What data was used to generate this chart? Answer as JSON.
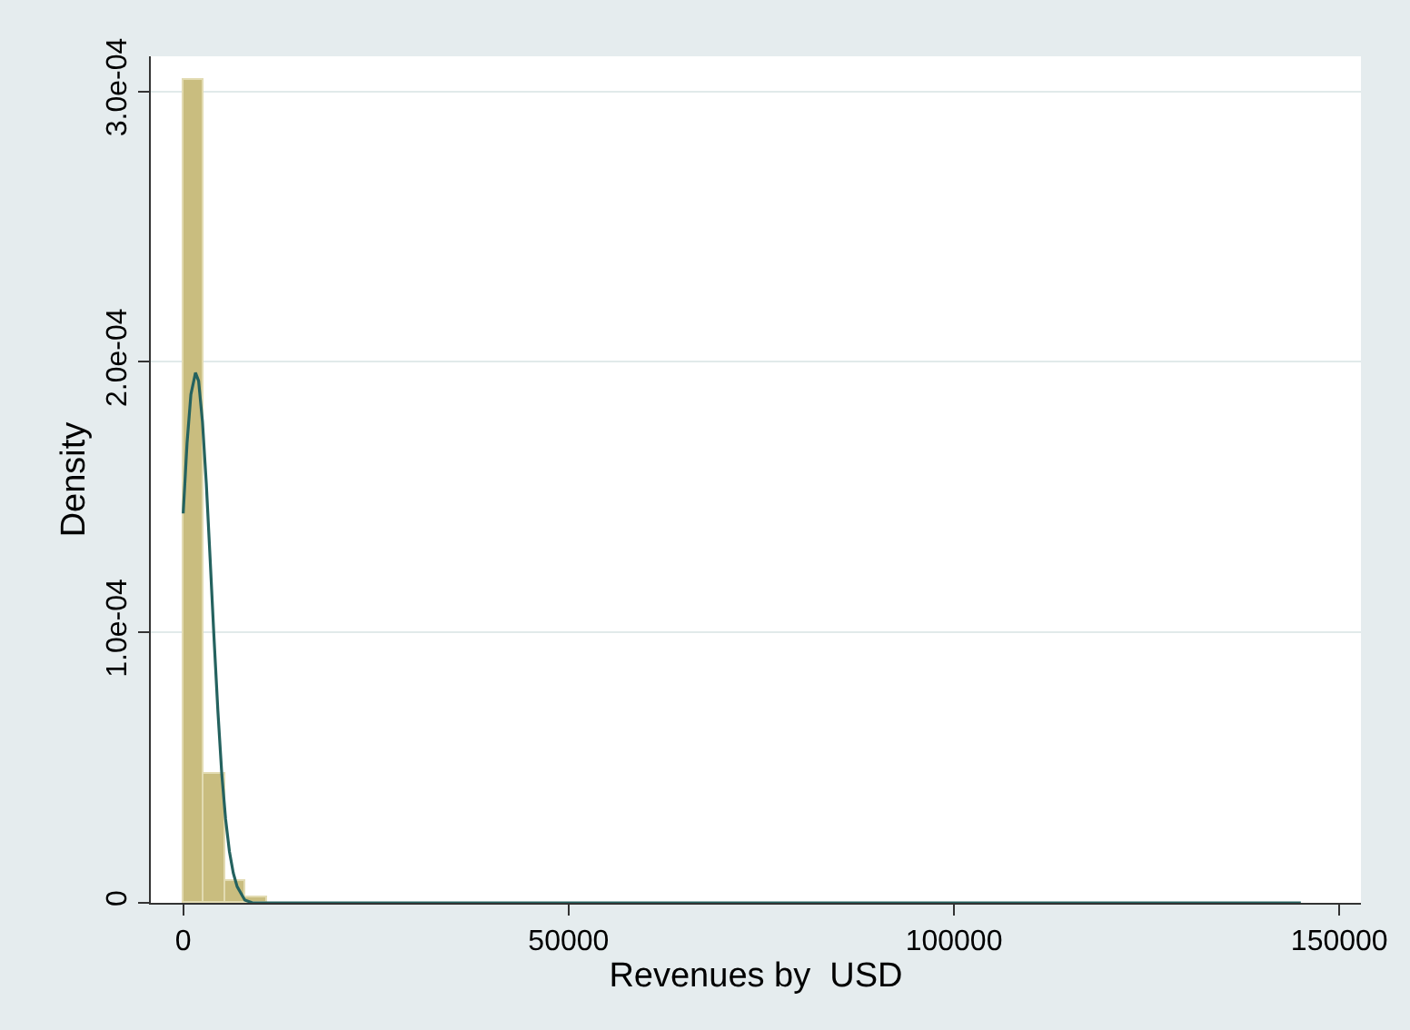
{
  "chart_data": {
    "type": "histogram",
    "xlabel": "Revenues by  USD",
    "ylabel": "Density",
    "bins": [
      0,
      2700,
      5400,
      8100,
      10800
    ],
    "values": [
      0.000304,
      4.8e-05,
      8e-06,
      2e-06
    ],
    "color": "#c9bd7f",
    "series": [
      {
        "type": "line",
        "color": "#24625f",
        "x": [
          0,
          500,
          1000,
          1600,
          2000,
          2500,
          3000,
          3500,
          4000,
          4500,
          5000,
          5500,
          6000,
          6500,
          7000,
          8000,
          9000,
          145000
        ],
        "values": [
          0.000144,
          0.00017,
          0.000188,
          0.000196,
          0.000193,
          0.000178,
          0.000155,
          0.000127,
          9.8e-05,
          7.1e-05,
          4.8e-05,
          3.1e-05,
          1.9e-05,
          1.1e-05,
          6e-06,
          1e-06,
          0,
          0
        ]
      }
    ],
    "xlim": [
      -4200,
      152800
    ],
    "xticks": [
      0,
      50000,
      100000,
      150000
    ],
    "ylim": [
      0,
      0.000313
    ],
    "yticks": [
      {
        "value": 0,
        "label": "0"
      },
      {
        "value": 0.0001,
        "label": "1.0e-04"
      },
      {
        "value": 0.0002,
        "label": "2.0e-04"
      },
      {
        "value": 0.0003,
        "label": "3.0e-04"
      }
    ],
    "grid": "y"
  }
}
